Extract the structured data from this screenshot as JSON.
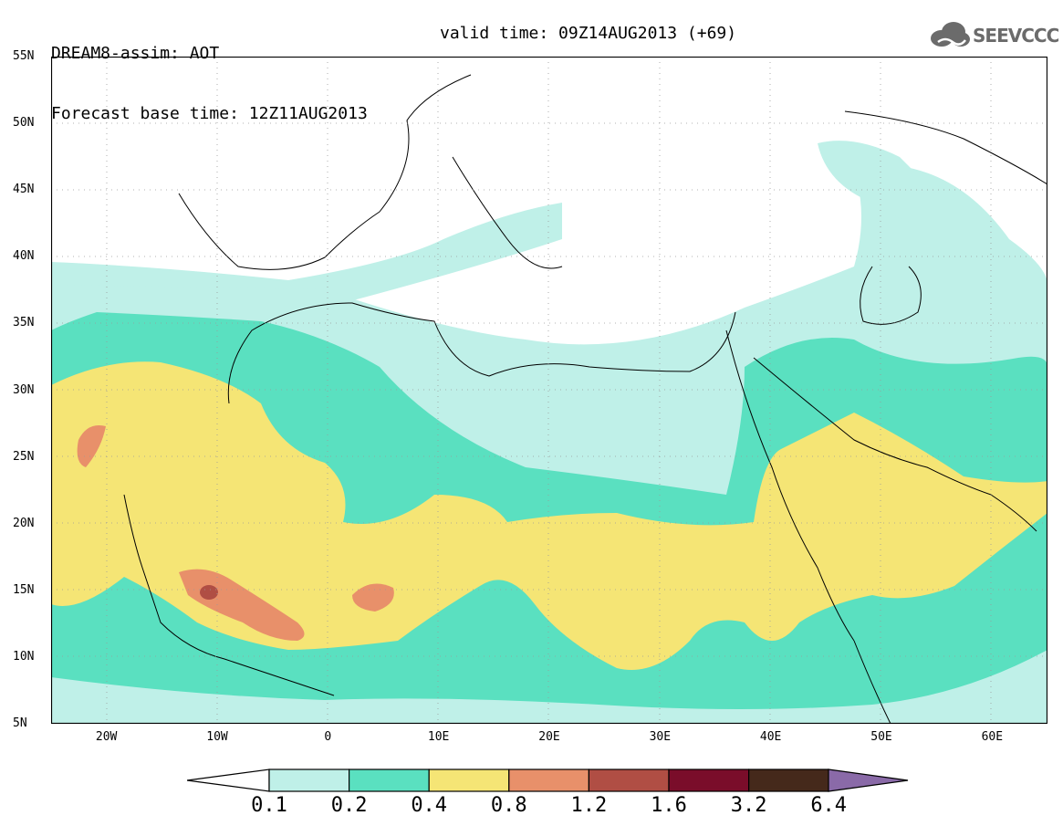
{
  "header": {
    "line1": "DREAM8-assim: AOT",
    "line2": "Forecast base time: 12Z11AUG2013",
    "valid": "valid time: 09Z14AUG2013 (+69)"
  },
  "logo": {
    "text": "SEEVCCC",
    "icon": "cloud-icon"
  },
  "map": {
    "lat_labels": [
      "55N",
      "50N",
      "45N",
      "40N",
      "35N",
      "30N",
      "25N",
      "20N",
      "15N",
      "10N",
      "5N"
    ],
    "lon_labels": [
      "20W",
      "10W",
      "0",
      "10E",
      "20E",
      "30E",
      "40E",
      "50E",
      "60E"
    ],
    "extent": {
      "lon_min": -25,
      "lon_max": 65,
      "lat_min": 5,
      "lat_max": 55
    }
  },
  "colorbar": {
    "labels": [
      "0.1",
      "0.2",
      "0.4",
      "0.8",
      "1.2",
      "1.6",
      "3.2",
      "6.4"
    ],
    "colors": [
      "#ffffff",
      "#bff0e8",
      "#5ae0c0",
      "#f5e575",
      "#e8906a",
      "#b04e44",
      "#7a0d2a",
      "#45291b",
      "#8a6aa8"
    ]
  }
}
